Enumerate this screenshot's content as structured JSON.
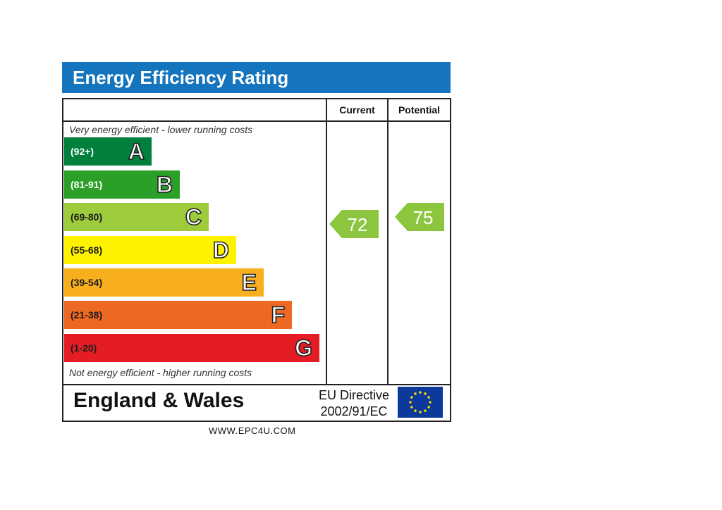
{
  "chart_data": {
    "type": "bar",
    "title": "Energy Efficiency Rating",
    "columns": [
      "Current",
      "Potential"
    ],
    "top_note": "Very energy efficient - lower running costs",
    "bottom_note": "Not energy efficient - higher running costs",
    "bands": [
      {
        "letter": "A",
        "range": "(92+)",
        "color": "#007f3d",
        "text_light": true
      },
      {
        "letter": "B",
        "range": "(81-91)",
        "color": "#2c9f29",
        "text_light": true
      },
      {
        "letter": "C",
        "range": "(69-80)",
        "color": "#9dcb3c",
        "text_light": false
      },
      {
        "letter": "D",
        "range": "(55-68)",
        "color": "#fff200",
        "text_light": false
      },
      {
        "letter": "E",
        "range": "(39-54)",
        "color": "#f7af1d",
        "text_light": false
      },
      {
        "letter": "F",
        "range": "(21-38)",
        "color": "#ed6823",
        "text_light": false
      },
      {
        "letter": "G",
        "range": "(1-20)",
        "color": "#e31d23",
        "text_light": false
      }
    ],
    "current": {
      "value": 72,
      "color": "#8cc63f"
    },
    "potential": {
      "value": 75,
      "color": "#8cc63f"
    }
  },
  "region": "England & Wales",
  "directive_line1": "EU Directive",
  "directive_line2": "2002/91/EC",
  "flag": {
    "icon": "eu-flag-icon",
    "color": "#0d3a9a",
    "star_color": "#ffdd00"
  },
  "footer": "WWW.EPC4U.COM"
}
